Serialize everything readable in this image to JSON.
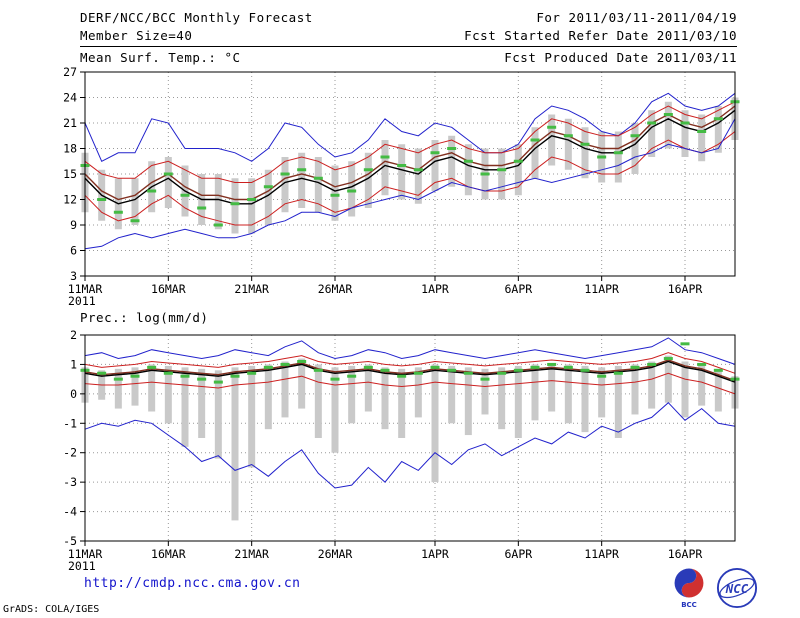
{
  "header": {
    "title": "DERF/NCC/BCC Monthly Forecast",
    "member_size": "Member Size=40",
    "temp_label": "Mean Surf. Temp.: °C",
    "for_range": "For 2011/03/11-2011/04/19",
    "fcst_started": "Fcst Started Refer Date 2011/03/10",
    "fcst_produced": "Fcst Produced Date 2011/03/11"
  },
  "panel2_label": "Prec.: log(mm/d)",
  "footer": {
    "url": "http://cmdp.ncc.cma.gov.cn",
    "credit": "GrADS: COLA/IGES",
    "logo_bcc": "BCC",
    "logo_ncc": "NCC"
  },
  "colors": {
    "ens_range": "#2222cc",
    "quartile": "#cc2020",
    "ens_mean": "#000000",
    "control": "#823020",
    "obs": "#44bb44",
    "bars": "#c9c9c9",
    "grid": "#999999",
    "axis": "#000000"
  },
  "chart_data": [
    {
      "type": "line",
      "title": "Mean Surf. Temp.: °C",
      "n_days": 40,
      "start_date": "11MAR2011",
      "end_date": "19APR2011",
      "x_tick_labels": [
        "11MAR",
        "16MAR",
        "21MAR",
        "26MAR",
        "1APR",
        "6APR",
        "11APR",
        "16APR"
      ],
      "x_tick_positions": [
        0,
        5,
        10,
        15,
        21,
        26,
        31,
        36
      ],
      "x_year_label": "2011",
      "ylim": [
        3,
        27
      ],
      "yticks": [
        3,
        6,
        9,
        12,
        15,
        18,
        21,
        24,
        27
      ],
      "grid": "dotted",
      "legend": "none",
      "series": [
        {
          "name": "ensemble-max",
          "colorKey": "ens_range",
          "width": 1,
          "values": [
            21.0,
            16.5,
            17.5,
            17.5,
            21.5,
            21.0,
            18.0,
            18.0,
            18.0,
            17.5,
            16.5,
            18.0,
            21.0,
            20.5,
            18.5,
            17.0,
            17.5,
            19.0,
            21.5,
            20.0,
            19.5,
            21.0,
            20.5,
            19.0,
            17.5,
            17.5,
            18.5,
            21.5,
            23.0,
            22.5,
            21.5,
            20.0,
            19.5,
            21.0,
            23.5,
            24.5,
            23.0,
            22.5,
            23.0,
            24.5
          ]
        },
        {
          "name": "upper-quartile",
          "colorKey": "quartile",
          "width": 1,
          "values": [
            16.5,
            15.0,
            14.5,
            14.5,
            16.0,
            16.5,
            15.5,
            14.5,
            14.5,
            14.0,
            14.0,
            15.0,
            16.5,
            17.0,
            16.5,
            15.5,
            16.0,
            17.0,
            18.5,
            18.0,
            17.5,
            18.5,
            19.0,
            18.0,
            17.5,
            17.5,
            18.0,
            20.0,
            21.5,
            21.0,
            20.0,
            19.5,
            19.5,
            20.5,
            22.0,
            23.0,
            22.0,
            21.5,
            22.5,
            23.5
          ]
        },
        {
          "name": "control-run",
          "colorKey": "control",
          "width": 1.4,
          "values": [
            15.0,
            13.0,
            12.0,
            12.5,
            14.0,
            15.0,
            13.5,
            12.5,
            12.5,
            12.0,
            12.0,
            13.0,
            14.5,
            15.0,
            14.5,
            13.5,
            14.0,
            15.0,
            16.5,
            16.0,
            15.5,
            17.0,
            17.5,
            16.5,
            16.0,
            16.0,
            16.5,
            18.5,
            20.0,
            19.5,
            18.5,
            18.0,
            18.0,
            19.0,
            21.0,
            22.0,
            21.0,
            20.5,
            21.5,
            23.0
          ]
        },
        {
          "name": "ensemble-mean",
          "colorKey": "ens_mean",
          "width": 1.4,
          "values": [
            14.5,
            12.5,
            11.5,
            12.0,
            13.5,
            14.5,
            13.0,
            12.0,
            12.0,
            11.5,
            11.5,
            12.5,
            14.0,
            14.5,
            14.0,
            13.0,
            13.5,
            14.5,
            16.0,
            15.5,
            15.0,
            16.5,
            17.0,
            16.0,
            15.5,
            15.5,
            16.0,
            18.0,
            19.5,
            19.0,
            18.0,
            17.5,
            17.5,
            18.5,
            20.5,
            21.5,
            20.5,
            20.0,
            21.0,
            22.5
          ]
        },
        {
          "name": "lower-quartile",
          "colorKey": "quartile",
          "width": 1,
          "values": [
            12.5,
            10.5,
            9.5,
            10.0,
            11.5,
            12.5,
            11.0,
            10.0,
            9.5,
            9.0,
            9.0,
            10.0,
            11.5,
            12.0,
            11.5,
            10.5,
            11.0,
            12.0,
            13.5,
            13.0,
            12.5,
            14.0,
            14.5,
            13.5,
            13.0,
            13.0,
            13.5,
            15.5,
            17.0,
            16.5,
            15.5,
            15.0,
            15.0,
            16.0,
            18.0,
            19.0,
            18.0,
            17.5,
            18.5,
            20.0
          ]
        },
        {
          "name": "ensemble-min",
          "colorKey": "ens_range",
          "width": 1,
          "values": [
            6.2,
            6.5,
            7.5,
            8.0,
            7.5,
            8.0,
            8.5,
            8.0,
            7.5,
            7.5,
            8.0,
            9.0,
            9.5,
            10.5,
            10.5,
            10.0,
            11.0,
            11.5,
            12.0,
            12.5,
            12.0,
            13.0,
            14.0,
            13.5,
            13.0,
            13.5,
            14.0,
            14.5,
            14.0,
            14.5,
            15.0,
            15.5,
            16.0,
            17.0,
            17.5,
            18.5,
            18.0,
            17.5,
            18.0,
            21.5
          ]
        }
      ],
      "obs": {
        "name": "obs-dashes",
        "colorKey": "obs",
        "values": [
          16.0,
          12.0,
          10.5,
          9.5,
          13.0,
          15.0,
          12.5,
          11.0,
          9.0,
          11.5,
          12.0,
          13.5,
          15.0,
          15.5,
          14.5,
          12.5,
          13.0,
          15.5,
          17.0,
          16.0,
          15.5,
          17.5,
          18.0,
          16.5,
          15.0,
          15.5,
          16.5,
          19.0,
          20.5,
          19.5,
          18.5,
          17.0,
          17.5,
          19.5,
          21.0,
          22.0,
          21.0,
          20.0,
          21.5,
          23.5
        ]
      },
      "bars": {
        "name": "ensemble-spread-bars",
        "colorKey": "bars",
        "low": [
          10.5,
          9.5,
          8.5,
          9.0,
          10.5,
          11.0,
          10.0,
          9.0,
          8.5,
          8.0,
          8.0,
          9.0,
          10.5,
          11.0,
          10.5,
          9.5,
          10.0,
          11.0,
          12.5,
          12.0,
          11.5,
          13.0,
          13.5,
          12.5,
          12.0,
          12.0,
          12.5,
          14.5,
          16.0,
          15.5,
          14.5,
          14.0,
          14.0,
          15.0,
          17.0,
          18.0,
          17.0,
          16.5,
          17.5,
          19.0
        ],
        "high": [
          17.5,
          15.5,
          14.5,
          14.5,
          16.5,
          17.0,
          16.0,
          15.0,
          15.0,
          14.5,
          14.5,
          15.5,
          17.0,
          17.5,
          17.0,
          16.0,
          16.5,
          17.5,
          19.0,
          18.5,
          18.0,
          19.0,
          19.5,
          18.5,
          18.0,
          18.0,
          18.5,
          20.5,
          22.0,
          21.5,
          20.5,
          20.0,
          20.0,
          21.0,
          22.5,
          23.5,
          22.5,
          22.0,
          23.0,
          24.0
        ]
      }
    },
    {
      "type": "line",
      "title": "Prec.: log(mm/d)",
      "n_days": 40,
      "start_date": "11MAR2011",
      "end_date": "19APR2011",
      "x_tick_labels": [
        "11MAR",
        "16MAR",
        "21MAR",
        "26MAR",
        "1APR",
        "6APR",
        "11APR",
        "16APR"
      ],
      "x_tick_positions": [
        0,
        5,
        10,
        15,
        21,
        26,
        31,
        36
      ],
      "x_year_label": "2011",
      "ylim": [
        -5,
        2
      ],
      "yticks": [
        -5,
        -4,
        -3,
        -2,
        -1,
        0,
        1,
        2
      ],
      "grid": "dotted",
      "legend": "none",
      "series": [
        {
          "name": "ensemble-max",
          "colorKey": "ens_range",
          "width": 1,
          "values": [
            1.3,
            1.4,
            1.2,
            1.3,
            1.5,
            1.4,
            1.3,
            1.2,
            1.3,
            1.5,
            1.4,
            1.3,
            1.6,
            1.8,
            1.4,
            1.2,
            1.3,
            1.5,
            1.4,
            1.2,
            1.3,
            1.5,
            1.4,
            1.3,
            1.2,
            1.3,
            1.4,
            1.5,
            1.4,
            1.3,
            1.2,
            1.3,
            1.4,
            1.5,
            1.6,
            1.9,
            1.5,
            1.4,
            1.2,
            1.0
          ]
        },
        {
          "name": "upper-quartile",
          "colorKey": "quartile",
          "width": 1,
          "values": [
            1.0,
            0.9,
            0.95,
            1.0,
            1.1,
            1.05,
            1.0,
            0.95,
            0.9,
            1.0,
            1.05,
            1.1,
            1.2,
            1.3,
            1.1,
            1.0,
            1.05,
            1.1,
            1.0,
            0.95,
            1.0,
            1.1,
            1.05,
            1.0,
            0.95,
            1.0,
            1.05,
            1.1,
            1.15,
            1.1,
            1.05,
            1.0,
            1.05,
            1.1,
            1.2,
            1.4,
            1.2,
            1.1,
            0.9,
            0.7
          ]
        },
        {
          "name": "control-run",
          "colorKey": "control",
          "width": 1.4,
          "values": [
            0.75,
            0.65,
            0.7,
            0.75,
            0.85,
            0.8,
            0.75,
            0.7,
            0.65,
            0.75,
            0.8,
            0.85,
            0.95,
            1.05,
            0.85,
            0.75,
            0.8,
            0.85,
            0.75,
            0.7,
            0.75,
            0.85,
            0.8,
            0.75,
            0.7,
            0.75,
            0.8,
            0.85,
            0.9,
            0.85,
            0.8,
            0.75,
            0.8,
            0.85,
            0.95,
            1.15,
            0.95,
            0.85,
            0.65,
            0.45
          ]
        },
        {
          "name": "ensemble-mean",
          "colorKey": "ens_mean",
          "width": 1.4,
          "values": [
            0.7,
            0.6,
            0.65,
            0.7,
            0.8,
            0.75,
            0.7,
            0.65,
            0.6,
            0.7,
            0.75,
            0.8,
            0.9,
            1.0,
            0.8,
            0.7,
            0.75,
            0.8,
            0.7,
            0.65,
            0.7,
            0.8,
            0.75,
            0.7,
            0.65,
            0.7,
            0.75,
            0.8,
            0.85,
            0.8,
            0.75,
            0.7,
            0.75,
            0.8,
            0.9,
            1.1,
            0.9,
            0.8,
            0.6,
            0.4
          ]
        },
        {
          "name": "lower-quartile",
          "colorKey": "quartile",
          "width": 1,
          "values": [
            0.35,
            0.3,
            0.3,
            0.35,
            0.4,
            0.35,
            0.3,
            0.25,
            0.2,
            0.3,
            0.35,
            0.4,
            0.5,
            0.6,
            0.4,
            0.3,
            0.35,
            0.4,
            0.3,
            0.25,
            0.3,
            0.4,
            0.35,
            0.3,
            0.25,
            0.3,
            0.35,
            0.4,
            0.45,
            0.4,
            0.35,
            0.3,
            0.35,
            0.4,
            0.5,
            0.7,
            0.5,
            0.4,
            0.2,
            0.0
          ]
        },
        {
          "name": "ensemble-min",
          "colorKey": "ens_range",
          "width": 1,
          "values": [
            -1.2,
            -1.0,
            -1.1,
            -0.9,
            -1.0,
            -1.4,
            -1.8,
            -2.3,
            -2.1,
            -2.6,
            -2.4,
            -2.8,
            -2.3,
            -1.9,
            -2.7,
            -3.2,
            -3.1,
            -2.5,
            -3.0,
            -2.3,
            -2.6,
            -2.0,
            -2.4,
            -1.9,
            -1.7,
            -2.1,
            -1.8,
            -1.5,
            -1.7,
            -1.3,
            -1.5,
            -1.1,
            -1.3,
            -1.0,
            -0.8,
            -0.3,
            -0.9,
            -0.5,
            -1.0,
            -1.1
          ]
        }
      ],
      "obs": {
        "name": "obs-dashes",
        "colorKey": "obs",
        "values": [
          0.8,
          0.7,
          0.5,
          0.6,
          0.9,
          0.7,
          0.6,
          0.5,
          0.4,
          0.6,
          0.7,
          0.9,
          1.0,
          1.1,
          0.8,
          0.5,
          0.6,
          0.9,
          0.8,
          0.6,
          0.7,
          0.9,
          0.8,
          0.7,
          0.5,
          0.7,
          0.8,
          0.9,
          1.0,
          0.9,
          0.8,
          0.6,
          0.7,
          0.9,
          1.0,
          1.2,
          1.7,
          1.0,
          0.8,
          0.5
        ]
      },
      "bars": {
        "name": "ensemble-spread-bars",
        "colorKey": "bars",
        "low": [
          -0.3,
          -0.2,
          -0.5,
          -0.4,
          -0.6,
          -1.0,
          -1.8,
          -1.5,
          -2.2,
          -4.3,
          -2.5,
          -1.2,
          -0.8,
          -0.5,
          -1.5,
          -2.0,
          -1.0,
          -0.6,
          -1.2,
          -1.5,
          -0.8,
          -3.0,
          -1.0,
          -1.4,
          -0.7,
          -1.2,
          -1.5,
          -0.9,
          -0.6,
          -1.0,
          -1.3,
          -0.8,
          -1.5,
          -0.7,
          -0.5,
          -0.3,
          -0.8,
          -0.4,
          -0.6,
          -0.5
        ],
        "high": [
          0.9,
          0.8,
          0.85,
          0.9,
          1.0,
          0.95,
          0.9,
          0.85,
          0.8,
          0.9,
          0.95,
          1.0,
          1.1,
          1.2,
          1.0,
          0.9,
          0.95,
          1.0,
          0.9,
          0.85,
          0.9,
          1.0,
          0.95,
          0.9,
          0.85,
          0.9,
          0.95,
          1.0,
          1.05,
          1.0,
          0.95,
          0.9,
          0.95,
          1.0,
          1.1,
          1.3,
          1.1,
          1.0,
          0.8,
          0.6
        ]
      }
    }
  ]
}
